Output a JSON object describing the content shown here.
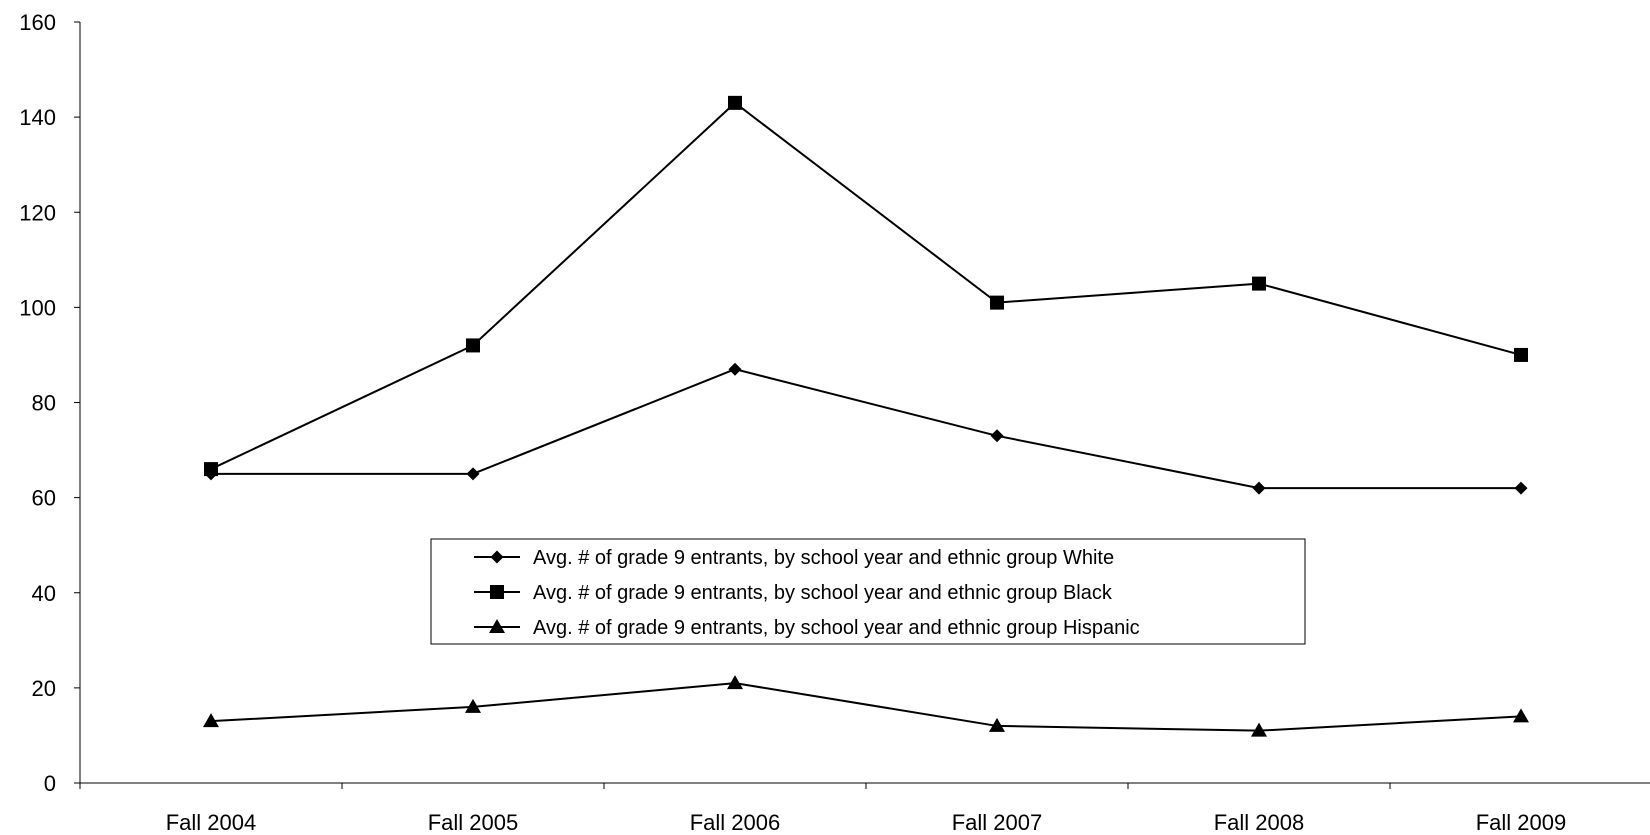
{
  "chart_data": {
    "type": "line",
    "categories": [
      "Fall 2004",
      "Fall 2005",
      "Fall 2006",
      "Fall 2007",
      "Fall 2008",
      "Fall 2009"
    ],
    "series": [
      {
        "name": "Avg. # of grade 9 entrants, by school year and ethnic group White",
        "marker": "diamond",
        "values": [
          65,
          65,
          87,
          73,
          62,
          62
        ]
      },
      {
        "name": "Avg. # of grade 9 entrants, by school year and ethnic group Black",
        "marker": "square",
        "values": [
          66,
          92,
          143,
          101,
          105,
          90
        ]
      },
      {
        "name": "Avg. # of grade 9 entrants, by school year and ethnic group Hispanic",
        "marker": "triangle",
        "values": [
          13,
          16,
          21,
          12,
          11,
          14
        ]
      }
    ],
    "ylim": [
      0,
      160
    ],
    "yticks": [
      0,
      20,
      40,
      60,
      80,
      100,
      120,
      140,
      160
    ],
    "grid": false,
    "legend_position": "center",
    "line_color": "#000000"
  }
}
